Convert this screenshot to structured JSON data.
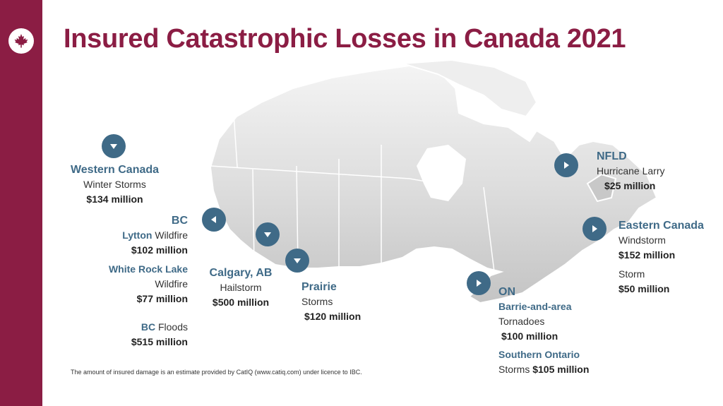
{
  "title": "Insured Catastrophic Losses in Canada 2021",
  "logo_icon": "maple-leaf-icon",
  "colors": {
    "brand": "#8b1d44",
    "marker": "#3f6a87",
    "region_label": "#3f6a87"
  },
  "regions": {
    "western_canada": {
      "name": "Western Canada",
      "event": "Winter Storms",
      "amount": "$134 million",
      "marker_icon": "arrow-down-icon"
    },
    "bc": {
      "name": "BC",
      "marker_icon": "arrow-left-icon",
      "lytton": {
        "place": "Lytton",
        "event": "Wildfire",
        "amount": "$102 million"
      },
      "white_rock_lake": {
        "place": "White Rock Lake",
        "event": "Wildfire",
        "amount": "$77 million"
      },
      "floods": {
        "place": "BC",
        "event": "Floods",
        "amount": "$515 million"
      }
    },
    "calgary": {
      "name": "Calgary, AB",
      "event": "Hailstorm",
      "amount": "$500 million",
      "marker_icon": "arrow-down-icon"
    },
    "prairie": {
      "name": "Prairie",
      "event": "Storms",
      "amount": "$120 million",
      "marker_icon": "arrow-down-icon"
    },
    "ontario": {
      "name": "ON",
      "marker_icon": "arrow-right-icon",
      "barrie": {
        "place": "Barrie-and-area",
        "event": "Tornadoes",
        "amount": "$100 million"
      },
      "southern": {
        "place": "Southern Ontario",
        "event": "Storms",
        "amount": "$105 million"
      }
    },
    "nfld": {
      "name": "NFLD",
      "event": "Hurricane Larry",
      "amount": "$25 million",
      "marker_icon": "arrow-right-icon"
    },
    "eastern_canada": {
      "name": "Eastern Canada",
      "marker_icon": "arrow-right-icon",
      "windstorm": {
        "event": "Windstorm",
        "amount": "$152 million"
      },
      "storm": {
        "event": "Storm",
        "amount": "$50 million"
      }
    }
  },
  "footnote": "The amount of insured damage is an estimate provided by CatIQ (www.catiq.com) under licence to IBC."
}
